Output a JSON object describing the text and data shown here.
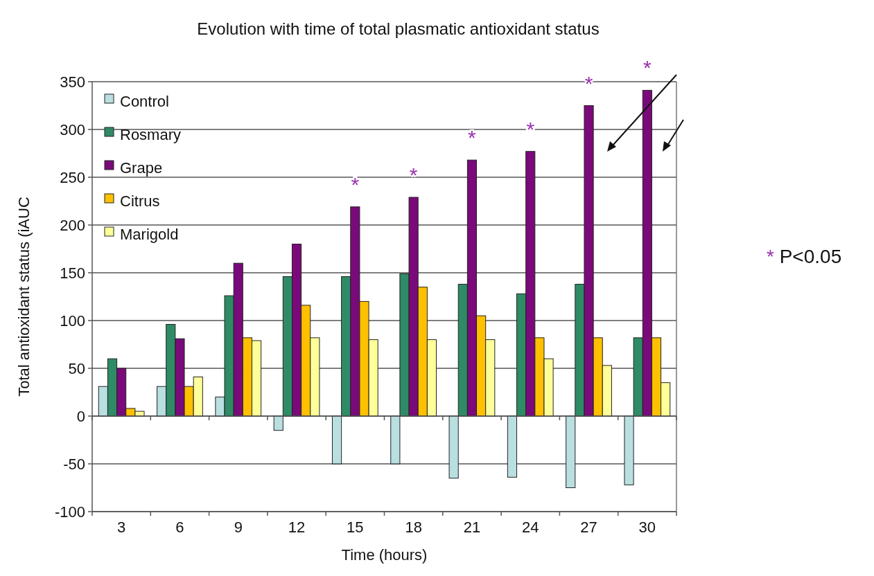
{
  "chart_data": {
    "type": "bar",
    "title": "Evolution with time of total plasmatic antioxidant status",
    "xlabel": "Time (hours)",
    "ylabel": "Total antioxidant status (iAUC",
    "categories": [
      "3",
      "6",
      "9",
      "12",
      "15",
      "18",
      "21",
      "24",
      "27",
      "30"
    ],
    "series": [
      {
        "name": "Control",
        "color": "#b9dfe0",
        "values": [
          31,
          31,
          20,
          -15,
          -50,
          -50,
          -65,
          -64,
          -75,
          -72
        ]
      },
      {
        "name": "Rosmary",
        "color": "#2e8b66",
        "values": [
          60,
          96,
          126,
          146,
          146,
          149,
          138,
          128,
          138,
          82
        ]
      },
      {
        "name": "Grape",
        "color": "#7a0a7a",
        "values": [
          50,
          81,
          160,
          180,
          219,
          229,
          268,
          277,
          325,
          341
        ]
      },
      {
        "name": "Citrus",
        "color": "#ffc000",
        "values": [
          8,
          31,
          82,
          116,
          120,
          135,
          105,
          82,
          82,
          82
        ]
      },
      {
        "name": "Marigold",
        "color": "#ffff99",
        "values": [
          5,
          41,
          79,
          82,
          80,
          80,
          80,
          60,
          53,
          35
        ]
      }
    ],
    "ylim": [
      -100,
      350
    ],
    "yticks": [
      -100,
      -50,
      0,
      50,
      100,
      150,
      200,
      250,
      300,
      350
    ],
    "grid": "y",
    "legend": "top left",
    "annotations": [
      {
        "text": "*",
        "x": "15",
        "y": 219
      },
      {
        "text": "*",
        "x": "18",
        "y": 229
      },
      {
        "text": "*",
        "x": "21",
        "y": 268
      },
      {
        "text": "*",
        "x": "24",
        "y": 277
      },
      {
        "text": "*",
        "x": "27",
        "y": 325
      },
      {
        "text": "*",
        "x": "30",
        "y": 341
      },
      "* P<0.05"
    ]
  }
}
